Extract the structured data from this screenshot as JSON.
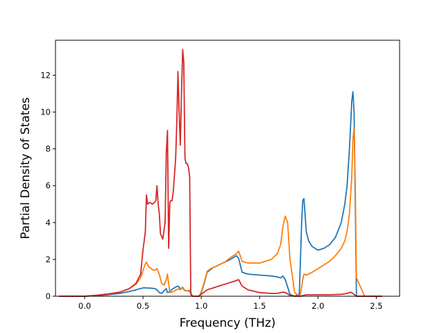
{
  "chart_data": {
    "type": "line",
    "title": "",
    "xlabel": "Frequency (THz)",
    "ylabel": "Partial Density of States",
    "xlim": [
      -0.25,
      2.7
    ],
    "ylim": [
      0,
      13.9
    ],
    "xticks": [
      0.0,
      0.5,
      1.0,
      1.5,
      2.0,
      2.5
    ],
    "xtick_labels": [
      "0.0",
      "0.5",
      "1.0",
      "1.5",
      "2.0",
      "2.5"
    ],
    "yticks": [
      0,
      2,
      4,
      6,
      8,
      10,
      12
    ],
    "ytick_labels": [
      "0",
      "2",
      "4",
      "6",
      "8",
      "10",
      "12"
    ],
    "grid": false,
    "legend": "none",
    "series": [
      {
        "color": "#1f77b4",
        "x": [
          -0.22,
          0.0,
          0.1,
          0.2,
          0.3,
          0.38,
          0.44,
          0.48,
          0.51,
          0.53,
          0.56,
          0.6,
          0.62,
          0.64,
          0.66,
          0.68,
          0.7,
          0.71,
          0.73,
          0.75,
          0.78,
          0.8,
          0.82,
          0.84,
          0.86,
          0.88,
          0.9,
          0.91,
          0.92,
          0.93,
          0.95,
          0.98,
          1.0,
          1.02,
          1.05,
          1.08,
          1.1,
          1.15,
          1.2,
          1.25,
          1.3,
          1.32,
          1.35,
          1.4,
          1.5,
          1.6,
          1.65,
          1.68,
          1.7,
          1.72,
          1.74,
          1.76,
          1.8,
          1.84,
          1.85,
          1.86,
          1.87,
          1.88,
          1.9,
          1.92,
          1.95,
          2.0,
          2.05,
          2.1,
          2.15,
          2.2,
          2.23,
          2.25,
          2.27,
          2.29,
          2.3,
          2.31,
          2.32,
          2.33,
          2.4,
          2.55
        ],
        "y": [
          0,
          0,
          0.03,
          0.08,
          0.15,
          0.25,
          0.35,
          0.42,
          0.46,
          0.45,
          0.44,
          0.42,
          0.35,
          0.2,
          0.15,
          0.3,
          0.42,
          0.2,
          0.25,
          0.38,
          0.5,
          0.55,
          0.42,
          0.45,
          0.3,
          0.3,
          0.3,
          0.2,
          0.05,
          0,
          0,
          0,
          0.2,
          0.6,
          1.3,
          1.45,
          1.55,
          1.7,
          1.85,
          2.0,
          2.2,
          2.05,
          1.3,
          1.2,
          1.15,
          1.1,
          1.05,
          1.0,
          1.1,
          0.9,
          0.5,
          0.1,
          0,
          0.1,
          2.0,
          4.0,
          5.2,
          5.3,
          3.5,
          3.0,
          2.7,
          2.5,
          2.6,
          2.8,
          3.2,
          4.0,
          5.0,
          6.0,
          8.0,
          10.6,
          11.1,
          10.0,
          5.0,
          0,
          0,
          0
        ]
      },
      {
        "color": "#ff7f0e",
        "x": [
          -0.22,
          0.0,
          0.1,
          0.2,
          0.3,
          0.38,
          0.44,
          0.48,
          0.5,
          0.52,
          0.53,
          0.55,
          0.58,
          0.6,
          0.62,
          0.64,
          0.66,
          0.68,
          0.7,
          0.71,
          0.73,
          0.76,
          0.8,
          0.82,
          0.84,
          0.86,
          0.88,
          0.9,
          0.91,
          0.92,
          0.93,
          0.95,
          0.98,
          1.0,
          1.02,
          1.05,
          1.08,
          1.1,
          1.15,
          1.2,
          1.25,
          1.3,
          1.32,
          1.35,
          1.4,
          1.5,
          1.6,
          1.65,
          1.68,
          1.7,
          1.72,
          1.74,
          1.76,
          1.8,
          1.84,
          1.85,
          1.86,
          1.87,
          1.88,
          1.9,
          1.95,
          2.0,
          2.05,
          2.1,
          2.15,
          2.2,
          2.23,
          2.25,
          2.27,
          2.29,
          2.3,
          2.31,
          2.32,
          2.33,
          2.4,
          2.55
        ],
        "y": [
          0,
          0,
          0.05,
          0.12,
          0.22,
          0.4,
          0.65,
          1.0,
          1.4,
          1.75,
          1.85,
          1.6,
          1.45,
          1.4,
          1.5,
          1.2,
          0.7,
          0.6,
          0.9,
          1.2,
          0.2,
          0.25,
          0.4,
          0.35,
          0.5,
          0.3,
          0.3,
          0.25,
          0.15,
          0.05,
          0,
          0,
          0,
          0.25,
          0.65,
          1.35,
          1.5,
          1.55,
          1.7,
          1.85,
          2.1,
          2.3,
          2.45,
          1.9,
          1.8,
          1.8,
          2.0,
          2.3,
          2.8,
          3.8,
          4.35,
          4.0,
          2.0,
          0.2,
          0,
          0.1,
          0.5,
          0.9,
          1.2,
          1.15,
          1.3,
          1.5,
          1.7,
          1.9,
          2.2,
          2.6,
          3.0,
          3.5,
          4.5,
          6.5,
          8.5,
          9.15,
          6.0,
          1.0,
          0,
          0
        ]
      },
      {
        "color": "#d62728",
        "x": [
          -0.22,
          0.0,
          0.1,
          0.2,
          0.3,
          0.38,
          0.44,
          0.48,
          0.5,
          0.51,
          0.52,
          0.53,
          0.54,
          0.56,
          0.58,
          0.6,
          0.61,
          0.62,
          0.63,
          0.64,
          0.65,
          0.67,
          0.69,
          0.7,
          0.71,
          0.72,
          0.73,
          0.74,
          0.75,
          0.76,
          0.78,
          0.79,
          0.8,
          0.81,
          0.82,
          0.83,
          0.84,
          0.85,
          0.86,
          0.87,
          0.88,
          0.89,
          0.9,
          0.91,
          0.92,
          0.95,
          0.98,
          1.0,
          1.05,
          1.1,
          1.15,
          1.2,
          1.25,
          1.3,
          1.32,
          1.35,
          1.4,
          1.5,
          1.6,
          1.65,
          1.68,
          1.7,
          1.72,
          1.76,
          1.8,
          1.85,
          1.9,
          2.0,
          2.1,
          2.2,
          2.25,
          2.28,
          2.3,
          2.32,
          2.33,
          2.4,
          2.55
        ],
        "y": [
          0,
          0,
          0.05,
          0.12,
          0.22,
          0.4,
          0.7,
          1.2,
          2.5,
          3.0,
          3.5,
          5.5,
          5.0,
          5.1,
          5.0,
          5.1,
          5.2,
          6.0,
          5.0,
          4.5,
          3.4,
          3.1,
          4.0,
          7.8,
          9.0,
          2.6,
          5.1,
          5.2,
          5.2,
          5.7,
          7.5,
          9.5,
          12.2,
          10.0,
          8.2,
          11.0,
          13.4,
          12.7,
          7.5,
          7.2,
          7.2,
          7.0,
          6.5,
          0.1,
          0,
          0,
          0,
          0.1,
          0.35,
          0.45,
          0.55,
          0.65,
          0.75,
          0.85,
          0.9,
          0.55,
          0.35,
          0.2,
          0.15,
          0.15,
          0.2,
          0.22,
          0.2,
          0.05,
          0,
          0,
          0.08,
          0.08,
          0.08,
          0.1,
          0.15,
          0.22,
          0.15,
          0.05,
          0,
          0,
          0
        ]
      }
    ]
  }
}
